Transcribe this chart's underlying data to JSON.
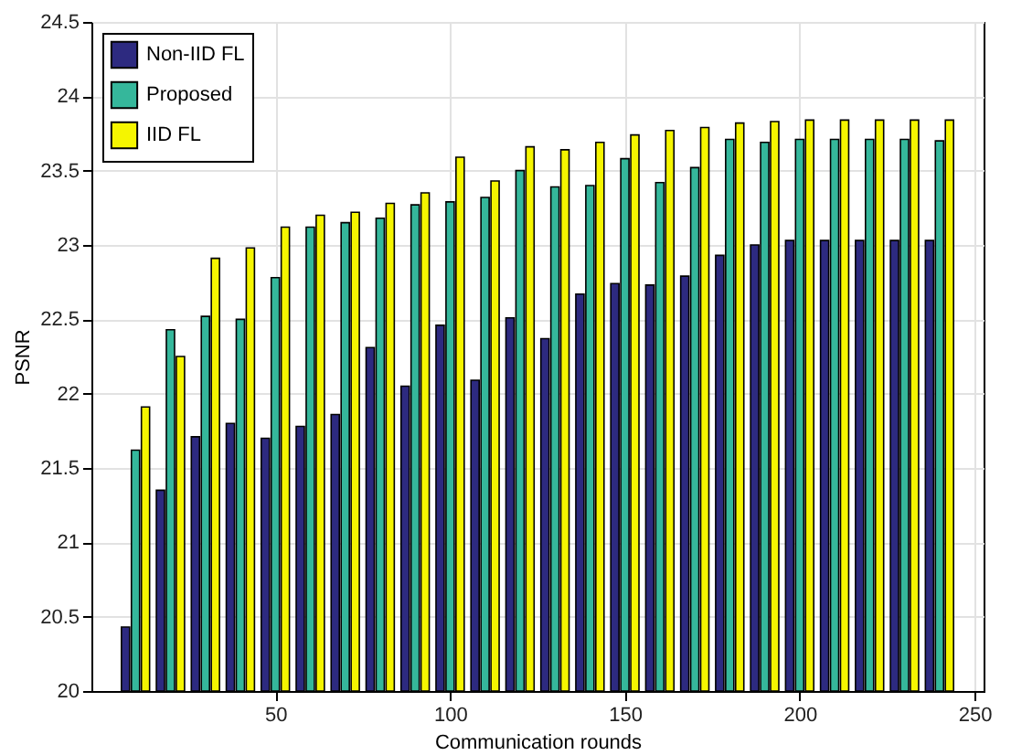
{
  "chart_data": {
    "type": "bar",
    "xlabel": "Communication rounds",
    "ylabel": "PSNR",
    "x": [
      10,
      20,
      30,
      40,
      50,
      60,
      70,
      80,
      90,
      100,
      110,
      120,
      130,
      140,
      150,
      160,
      170,
      180,
      190,
      200,
      210,
      220,
      230,
      240
    ],
    "series": [
      {
        "name": "Non-IID FL",
        "color": "#2d2a80",
        "values": [
          20.43,
          21.35,
          21.71,
          21.8,
          21.7,
          21.78,
          21.86,
          22.31,
          22.05,
          22.46,
          22.09,
          22.51,
          22.37,
          22.67,
          22.74,
          22.73,
          22.79,
          22.93,
          23.0,
          23.03,
          23.03,
          23.03,
          23.03,
          23.03
        ]
      },
      {
        "name": "Proposed",
        "color": "#35b79b",
        "values": [
          21.62,
          22.43,
          22.52,
          22.5,
          22.78,
          23.12,
          23.15,
          23.18,
          23.27,
          23.29,
          23.32,
          23.5,
          23.39,
          23.4,
          23.58,
          23.42,
          23.52,
          23.71,
          23.69,
          23.71,
          23.71,
          23.71,
          23.71,
          23.7
        ]
      },
      {
        "name": "IID FL",
        "color": "#f5f500",
        "values": [
          21.91,
          22.25,
          22.91,
          22.98,
          23.12,
          23.2,
          23.22,
          23.28,
          23.35,
          23.59,
          23.43,
          23.66,
          23.64,
          23.69,
          23.74,
          23.77,
          23.79,
          23.82,
          23.83,
          23.84,
          23.84,
          23.84,
          23.84,
          23.84
        ]
      }
    ],
    "xlim": [
      0,
      250
    ],
    "xticks": [
      50,
      100,
      150,
      200,
      250
    ],
    "ylim": [
      20,
      24.5
    ],
    "yticks": [
      20,
      20.5,
      21,
      21.5,
      22,
      22.5,
      23,
      23.5,
      24,
      24.5
    ],
    "grid": true,
    "legend": "top left"
  }
}
